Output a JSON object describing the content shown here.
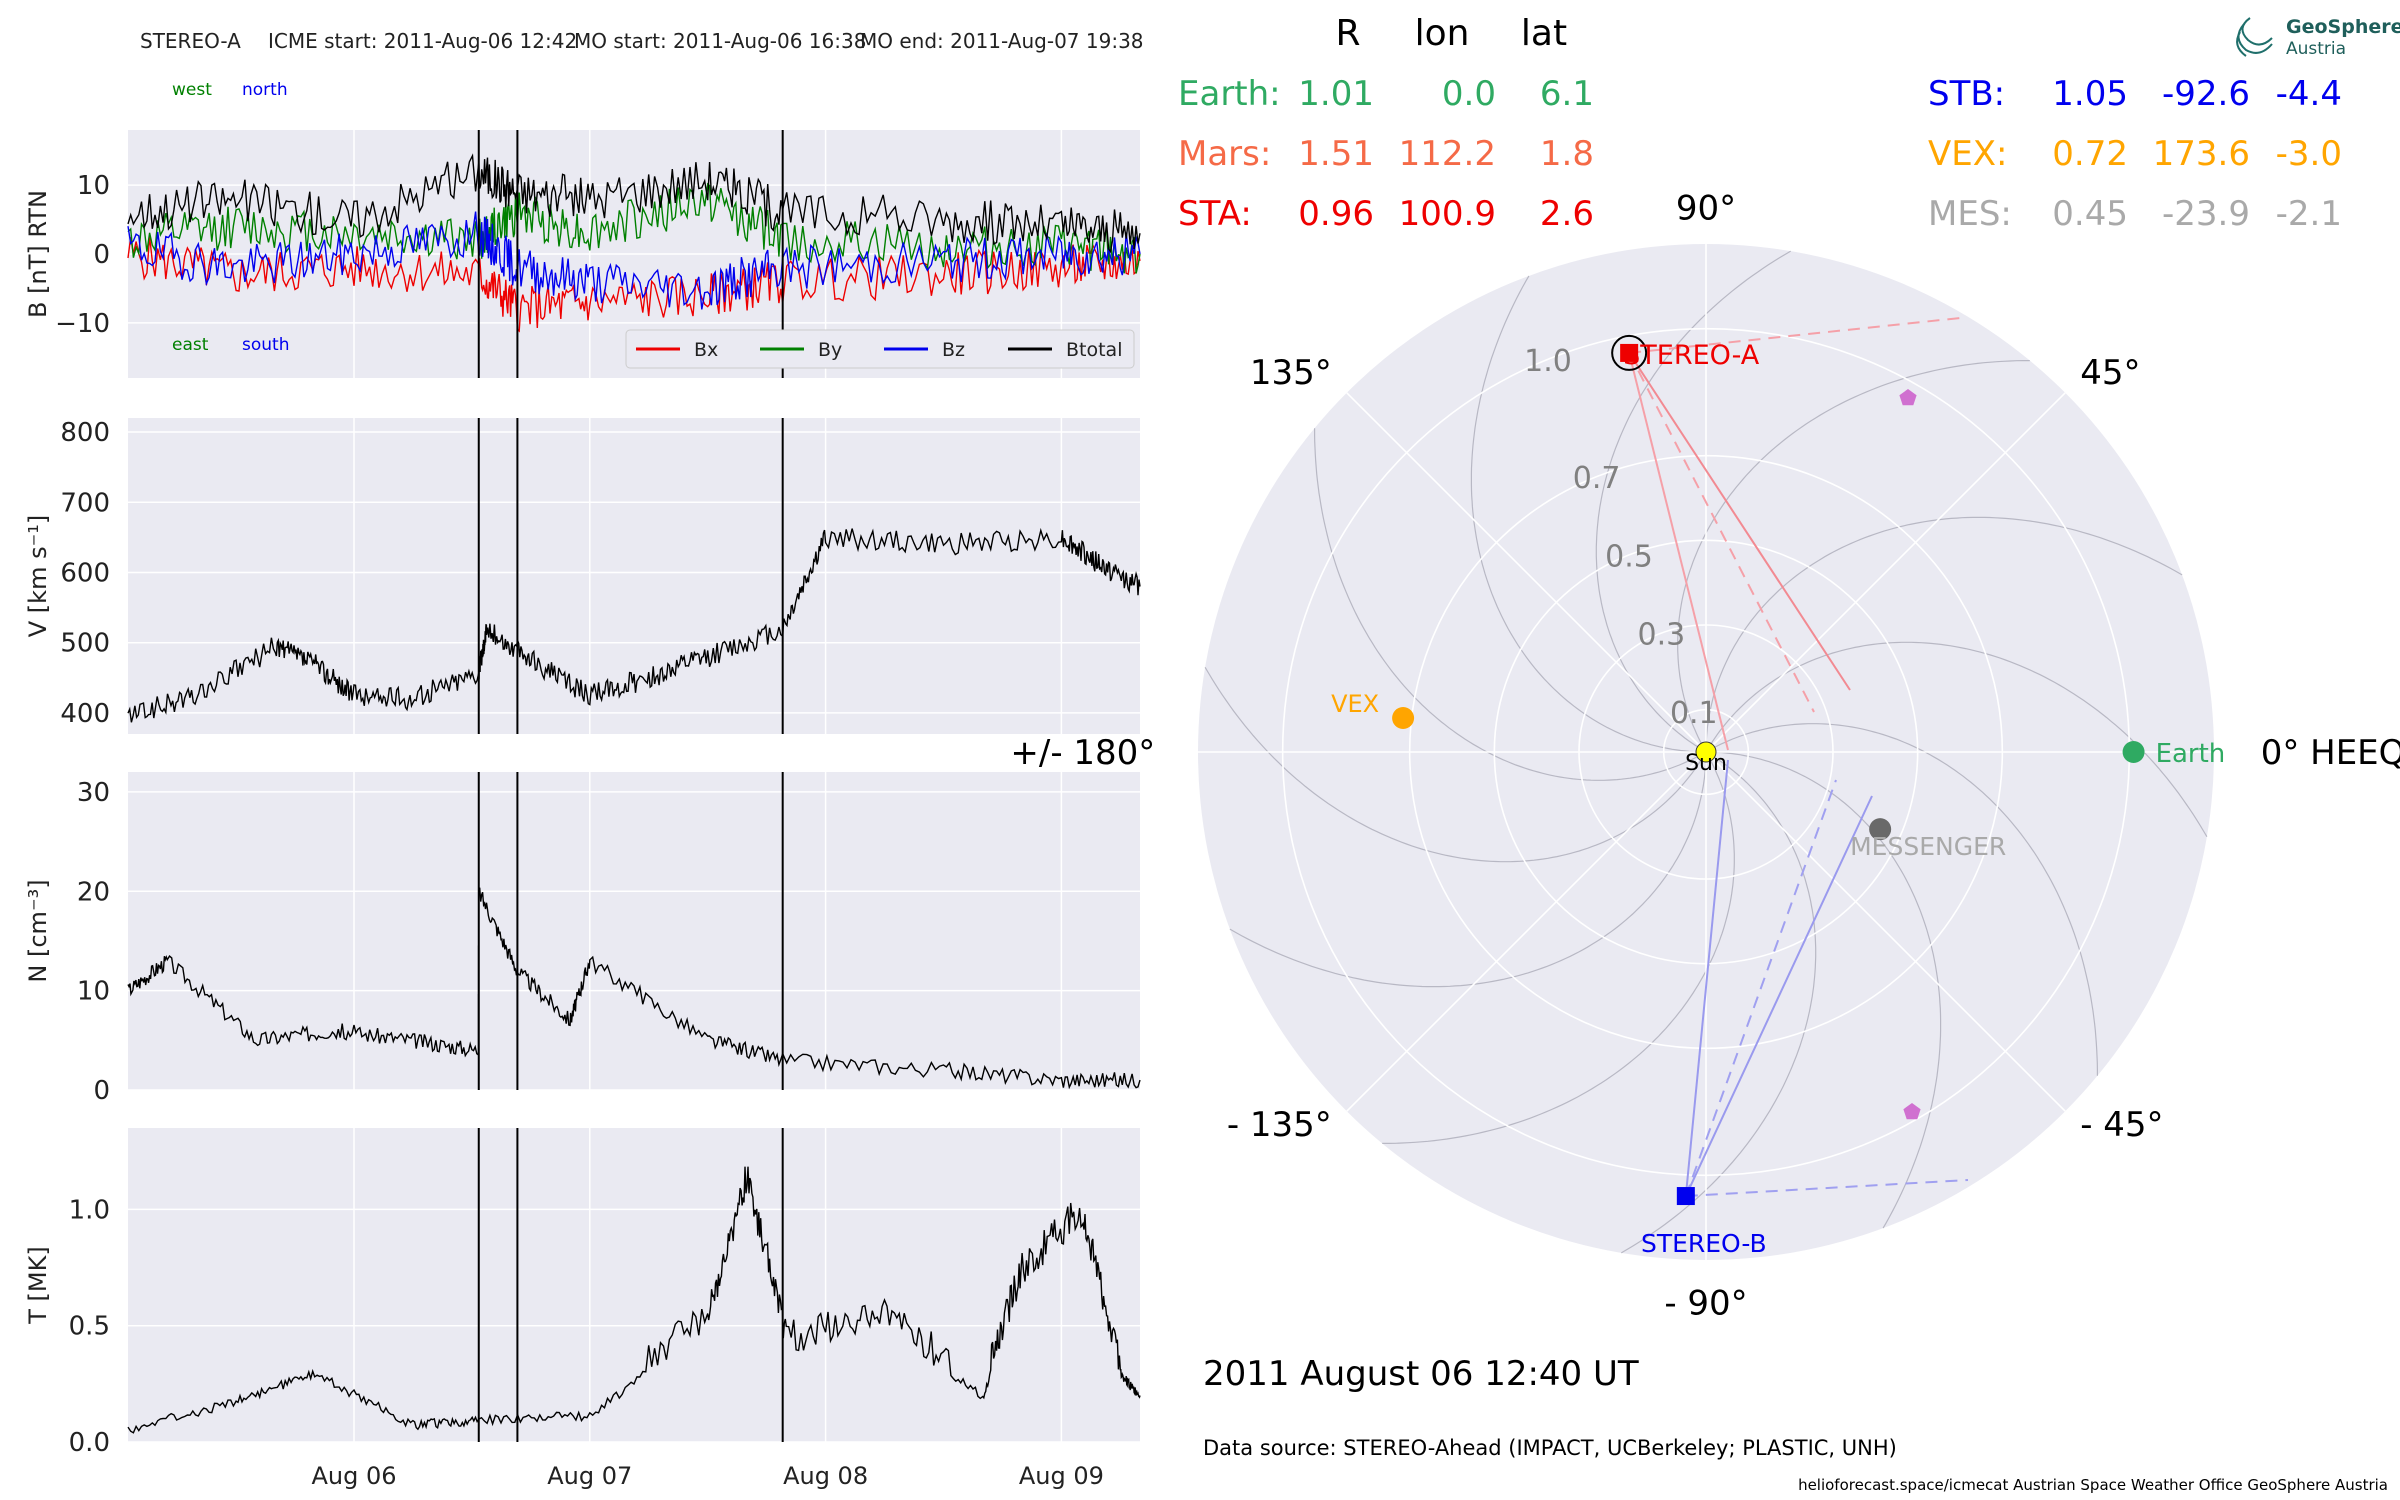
{
  "header": {
    "spacecraft": "STEREO-A",
    "icme_start": "ICME start: 2011-Aug-06 12:42",
    "mo_start": "MO start: 2011-Aug-06 16:38",
    "mo_end": "MO end: 2011-Aug-07 19:38"
  },
  "timeseries": {
    "x_domain": [
      "2011-08-05 01:00",
      "2011-08-09 08:00"
    ],
    "x_ticks": [
      "Aug 06",
      "Aug 07",
      "Aug 08",
      "Aug 09"
    ],
    "event_lines": [
      "2011-08-06 12:42",
      "2011-08-06 16:38",
      "2011-08-07 19:38"
    ]
  },
  "chart_data": [
    {
      "type": "line",
      "ylabel": "B [nT] RTN",
      "ylim": [
        -18,
        18
      ],
      "y_ticks": [
        "10",
        "0",
        "−10"
      ],
      "annotations": [
        "west",
        "north",
        "east",
        "south"
      ],
      "legend": {
        "placement": "lower-right"
      },
      "series": [
        {
          "name": "Bx",
          "color": "#ee0000",
          "x": [
            "2011-08-05 01:00",
            "2011-08-05 12:00",
            "2011-08-06 00:00",
            "2011-08-06 12:42",
            "2011-08-06 16:38",
            "2011-08-07 00:00",
            "2011-08-07 12:00",
            "2011-08-07 19:38",
            "2011-08-08 12:00",
            "2011-08-09 00:00",
            "2011-08-09 08:00"
          ],
          "y": [
            0,
            -3,
            -2,
            -3,
            -8,
            -7,
            -6,
            -4,
            -3,
            -2,
            -1
          ]
        },
        {
          "name": "By",
          "color": "#008000",
          "x": [
            "2011-08-05 01:00",
            "2011-08-05 12:00",
            "2011-08-06 00:00",
            "2011-08-06 12:42",
            "2011-08-06 16:38",
            "2011-08-07 00:00",
            "2011-08-07 12:00",
            "2011-08-07 19:38",
            "2011-08-08 12:00",
            "2011-08-09 00:00",
            "2011-08-09 08:00"
          ],
          "y": [
            2,
            4,
            3,
            2,
            6,
            3,
            8,
            2,
            1,
            1,
            0
          ]
        },
        {
          "name": "Bz",
          "color": "#0000ee",
          "x": [
            "2011-08-05 01:00",
            "2011-08-05 12:00",
            "2011-08-06 00:00",
            "2011-08-06 12:42",
            "2011-08-06 16:38",
            "2011-08-07 00:00",
            "2011-08-07 12:00",
            "2011-08-07 19:38",
            "2011-08-08 12:00",
            "2011-08-09 00:00",
            "2011-08-09 08:00"
          ],
          "y": [
            1,
            -2,
            0,
            3,
            -2,
            -4,
            -5,
            -2,
            -1,
            0,
            0
          ]
        },
        {
          "name": "Btotal",
          "color": "#000000",
          "x": [
            "2011-08-05 01:00",
            "2011-08-05 12:00",
            "2011-08-06 00:00",
            "2011-08-06 12:42",
            "2011-08-06 16:38",
            "2011-08-07 00:00",
            "2011-08-07 12:00",
            "2011-08-07 19:38",
            "2011-08-08 12:00",
            "2011-08-09 00:00",
            "2011-08-09 08:00"
          ],
          "y": [
            6,
            8,
            5,
            12,
            9,
            8,
            11,
            6,
            5,
            4,
            3
          ]
        }
      ]
    },
    {
      "type": "line",
      "ylabel": "V [km s⁻¹]",
      "ylim": [
        370,
        820
      ],
      "y_ticks": [
        "800",
        "700",
        "600",
        "500",
        "400"
      ],
      "series": [
        {
          "color": "#000000",
          "x": [
            "2011-08-05 01:00",
            "2011-08-05 08:00",
            "2011-08-05 16:00",
            "2011-08-05 20:00",
            "2011-08-06 00:00",
            "2011-08-06 06:00",
            "2011-08-06 12:42",
            "2011-08-06 13:30",
            "2011-08-06 18:00",
            "2011-08-07 00:00",
            "2011-08-07 06:00",
            "2011-08-07 12:00",
            "2011-08-07 19:38",
            "2011-08-08 00:00",
            "2011-08-08 12:00",
            "2011-08-09 00:00",
            "2011-08-09 04:00",
            "2011-08-09 08:00"
          ],
          "y": [
            395,
            425,
            495,
            470,
            425,
            420,
            460,
            520,
            475,
            425,
            450,
            480,
            520,
            650,
            640,
            650,
            610,
            580
          ]
        }
      ]
    },
    {
      "type": "line",
      "ylabel": "N [cm⁻³]",
      "ylim": [
        0,
        32
      ],
      "y_ticks": [
        "30",
        "20",
        "10",
        "0"
      ],
      "series": [
        {
          "color": "#000000",
          "x": [
            "2011-08-05 01:00",
            "2011-08-05 05:00",
            "2011-08-05 14:00",
            "2011-08-05 22:00",
            "2011-08-06 06:00",
            "2011-08-06 12:40",
            "2011-08-06 12:42",
            "2011-08-06 16:38",
            "2011-08-06 22:00",
            "2011-08-07 00:00",
            "2011-08-07 12:00",
            "2011-08-07 19:38",
            "2011-08-08 12:00",
            "2011-08-09 00:00",
            "2011-08-09 08:00"
          ],
          "y": [
            10,
            13,
            5,
            6,
            5,
            4,
            20,
            12,
            7,
            13,
            5,
            3,
            2,
            1,
            1
          ]
        }
      ]
    },
    {
      "type": "line",
      "ylabel": "T [MK]",
      "ylim": [
        0,
        1.35
      ],
      "y_ticks": [
        "1.0",
        "0.5",
        "0.0"
      ],
      "series": [
        {
          "color": "#000000",
          "x": [
            "2011-08-05 01:00",
            "2011-08-05 12:00",
            "2011-08-05 20:00",
            "2011-08-06 06:00",
            "2011-08-06 12:42",
            "2011-08-07 00:00",
            "2011-08-07 12:00",
            "2011-08-07 16:00",
            "2011-08-07 20:00",
            "2011-08-08 06:00",
            "2011-08-08 16:00",
            "2011-08-08 20:00",
            "2011-08-09 02:00",
            "2011-08-09 06:00",
            "2011-08-09 08:00"
          ],
          "y": [
            0.06,
            0.18,
            0.3,
            0.08,
            0.1,
            0.12,
            0.5,
            1.1,
            0.4,
            0.5,
            0.2,
            0.7,
            0.95,
            0.3,
            0.2
          ]
        }
      ]
    },
    {
      "type": "scatter",
      "table_headers": [
        "R",
        "lon",
        "lat"
      ],
      "table": [
        {
          "name": "Earth:",
          "R": "1.01",
          "lon": "0.0",
          "lat": "6.1",
          "color": "#2faa62"
        },
        {
          "name": "Mars:",
          "R": "1.51",
          "lon": "112.2",
          "lat": "1.8",
          "color": "#f56a47"
        },
        {
          "name": "STA:",
          "R": "0.96",
          "lon": "100.9",
          "lat": "2.6",
          "color": "#ee0000"
        },
        {
          "name": "STB:",
          "R": "1.05",
          "lon": "-92.6",
          "lat": "-4.4",
          "color": "#0000ee"
        },
        {
          "name": "VEX:",
          "R": "0.72",
          "lon": "173.6",
          "lat": "-3.0",
          "color": "#ffa500"
        },
        {
          "name": "MES:",
          "R": "0.45",
          "lon": "-23.9",
          "lat": "-2.1",
          "color": "#a9a9a9"
        }
      ],
      "angle_labels": [
        "90°",
        "45°",
        "0° HEEQ",
        "- 45°",
        "- 90°",
        "- 135°",
        "+/- 180°",
        "135°"
      ],
      "radial_labels": [
        "1.0",
        "0.7",
        "0.5",
        "0.3",
        "0.1"
      ],
      "radial_values": [
        1.0,
        0.7,
        0.5,
        0.3,
        0.1
      ],
      "bodies": [
        {
          "label": "Earth",
          "r": 1.01,
          "lon": 0.0,
          "color": "#2faa62"
        },
        {
          "label": "STEREO-A",
          "r": 0.96,
          "lon": 100.9,
          "color": "#ee0000"
        },
        {
          "label": "STEREO-B",
          "r": 1.05,
          "lon": -92.6,
          "color": "#0000ee"
        },
        {
          "label": "VEX",
          "r": 0.72,
          "lon": 173.6,
          "color": "#ffa500"
        },
        {
          "label": "MESSENGER",
          "r": 0.45,
          "lon": -23.9,
          "color": "#696969"
        },
        {
          "label": "Sun",
          "r": 0.0,
          "lon": 0.0,
          "color": "#ffff00"
        }
      ]
    }
  ],
  "footer": {
    "timestamp": "2011 August 06  12:40 UT",
    "data_source": "Data source: STEREO-Ahead (IMPACT, UCBerkeley; PLASTIC, UNH)",
    "credits": "helioforecast.space/icmecat   Austrian Space Weather Office   GeoSphere Austria"
  },
  "logo": {
    "line1": "GeoSphere",
    "line2": "Austria"
  }
}
